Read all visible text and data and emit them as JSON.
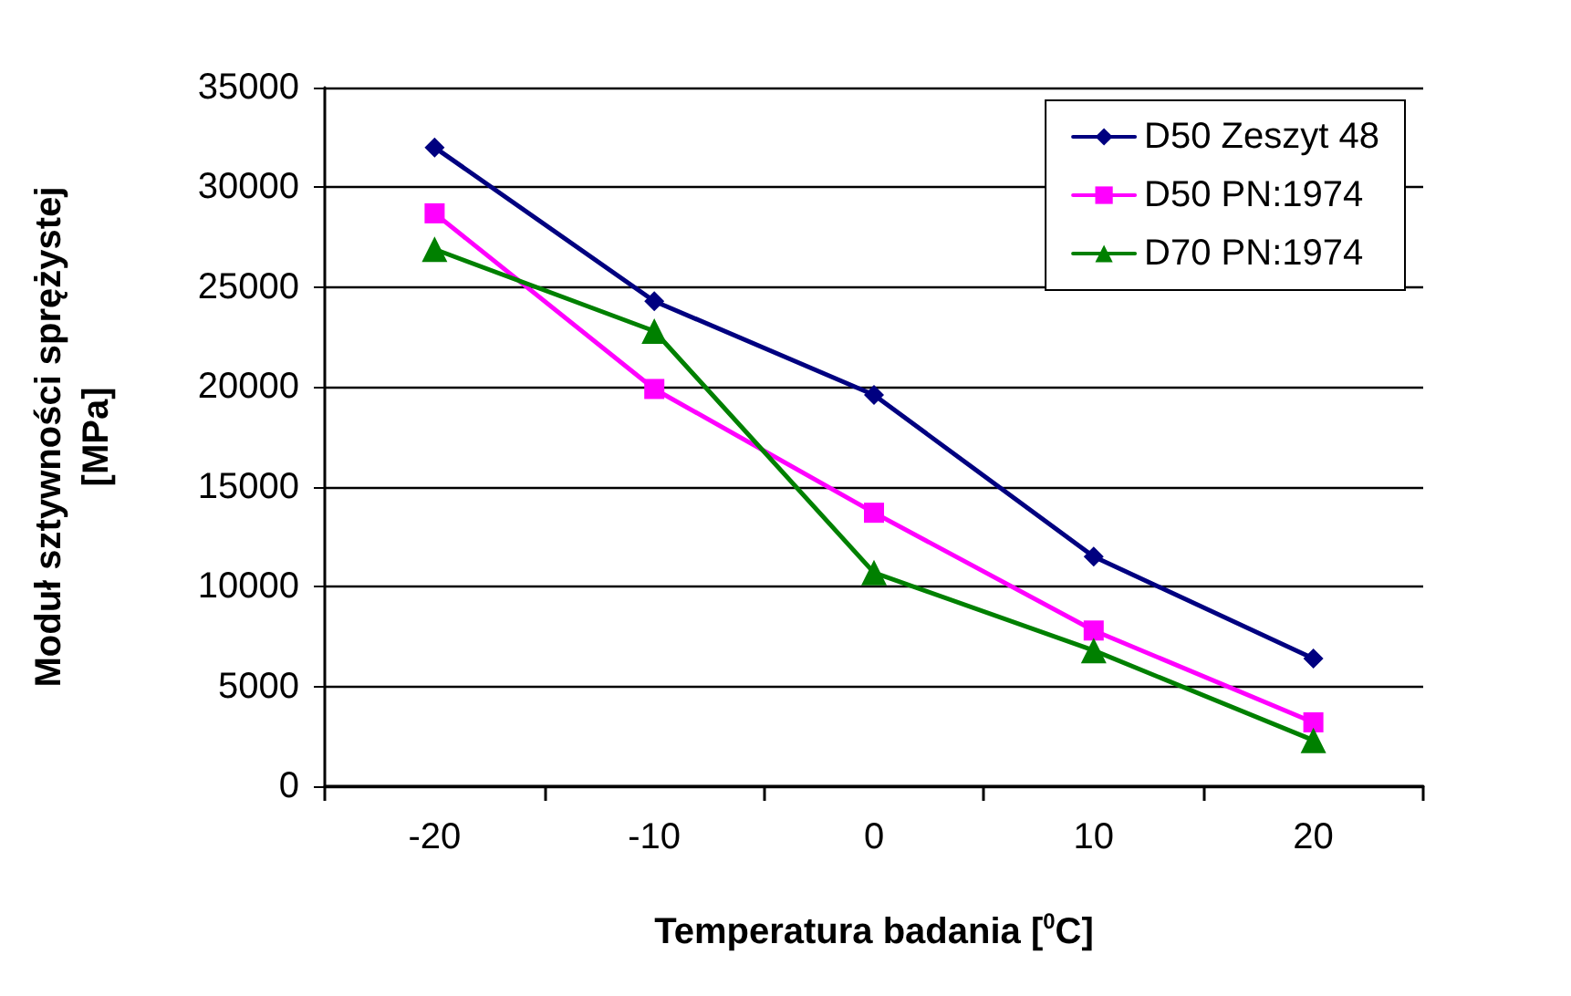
{
  "chart_data": {
    "type": "line",
    "xlabel": "Temperatura badania [$^{0}$C]",
    "ylabel": "Moduł sztywności sprężystej [MPa]",
    "categories": [
      "-20",
      "-10",
      "0",
      "10",
      "20"
    ],
    "series": [
      {
        "name": "D50 Zeszyt 48",
        "color": "#000080",
        "marker": "diamond",
        "values": [
          32000,
          24300,
          19600,
          11500,
          6400
        ]
      },
      {
        "name": "D50 PN:1974",
        "color": "#ff00ff",
        "marker": "square",
        "values": [
          28700,
          19900,
          13700,
          7800,
          3200
        ]
      },
      {
        "name": "D70 PN:1974",
        "color": "#008000",
        "marker": "triangle",
        "values": [
          26900,
          22800,
          10700,
          6800,
          2300
        ]
      }
    ],
    "ylim": [
      0,
      35000
    ],
    "yticks": [
      0,
      5000,
      10000,
      15000,
      20000,
      25000,
      30000,
      35000
    ],
    "grid": "y",
    "legend": "top right",
    "line_style": "solid"
  }
}
